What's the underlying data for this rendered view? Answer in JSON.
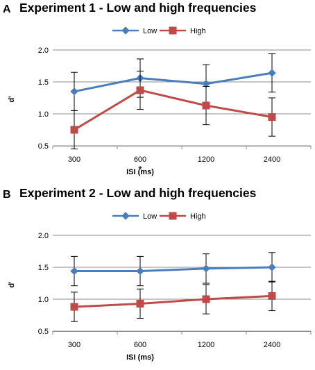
{
  "chart_data": [
    {
      "type": "line",
      "panel_label": "A",
      "title": "Experiment 1 - Low and high frequencies",
      "xlabel": "ISI (ms)",
      "ylabel": "d'",
      "categories": [
        "300",
        "600",
        "1200",
        "2400"
      ],
      "ylim": [
        0.5,
        2.0
      ],
      "yticks": [
        "0.5",
        "1.0",
        "1.5",
        "2.0"
      ],
      "grid": true,
      "legend_position": "top",
      "series": [
        {
          "name": "Low",
          "color": "#4A7EBB",
          "marker": "diamond",
          "values": [
            1.35,
            1.56,
            1.47,
            1.64
          ],
          "errors": [
            0.3,
            0.3,
            0.3,
            0.3
          ]
        },
        {
          "name": "High",
          "color": "#BE4B48",
          "marker": "square",
          "values": [
            0.75,
            1.37,
            1.13,
            0.95
          ],
          "errors": [
            0.3,
            0.3,
            0.3,
            0.3
          ]
        }
      ],
      "annotations": [
        {
          "text": "*",
          "category": "600"
        }
      ]
    },
    {
      "type": "line",
      "panel_label": "B",
      "title": "Experiment 2 - Low and high frequencies",
      "xlabel": "ISI (ms)",
      "ylabel": "d'",
      "categories": [
        "300",
        "600",
        "1200",
        "2400"
      ],
      "ylim": [
        0.5,
        2.0
      ],
      "yticks": [
        "0.5",
        "1.0",
        "1.5",
        "2.0"
      ],
      "grid": true,
      "legend_position": "top",
      "series": [
        {
          "name": "Low",
          "color": "#4A7EBB",
          "marker": "diamond",
          "values": [
            1.44,
            1.44,
            1.48,
            1.5
          ],
          "errors": [
            0.23,
            0.23,
            0.23,
            0.23
          ]
        },
        {
          "name": "High",
          "color": "#BE4B48",
          "marker": "square",
          "values": [
            0.88,
            0.93,
            1.0,
            1.05
          ],
          "errors": [
            0.23,
            0.23,
            0.23,
            0.23
          ]
        }
      ],
      "annotations": []
    }
  ]
}
